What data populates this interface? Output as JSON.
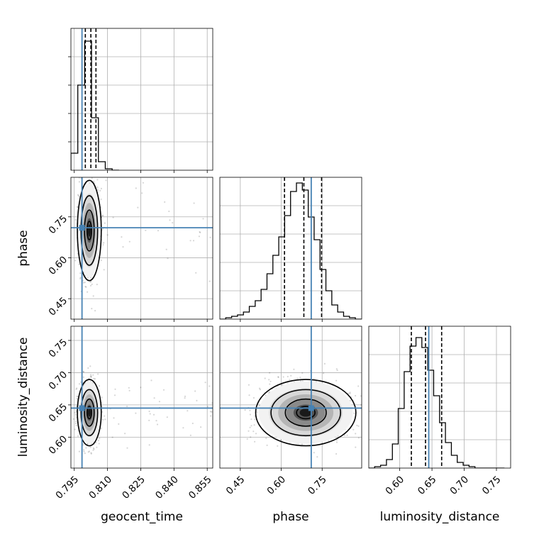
{
  "chart_data": {
    "type": "corner",
    "parameters": [
      {
        "key": "geocent_time",
        "label": "geocent_time",
        "range": [
          0.7935,
          0.8575
        ],
        "ticks": [
          "0.795",
          "0.810",
          "0.825",
          "0.840",
          "0.855"
        ],
        "truth": 0.7985,
        "quantiles": [
          0.8,
          0.8025,
          0.8048
        ]
      },
      {
        "key": "phase",
        "label": "phase",
        "range": [
          0.375,
          0.895
        ],
        "ticks": [
          "0.45",
          "0.60",
          "0.75"
        ],
        "truth": 0.71,
        "quantiles": [
          0.612,
          0.683,
          0.748
        ]
      },
      {
        "key": "luminosity_distance",
        "label": "luminosity_distance",
        "range": [
          0.552,
          0.772
        ],
        "ticks": [
          "0.60",
          "0.65",
          "0.70",
          "0.75"
        ],
        "truth": 0.645,
        "quantiles": [
          0.618,
          0.64,
          0.665
        ]
      }
    ],
    "histograms": {
      "geocent_time": {
        "bins": [
          0.7935,
          0.7966,
          0.7997,
          0.8028,
          0.8059,
          0.809,
          0.8121,
          0.8152
        ],
        "counts": [
          0.12,
          0.6,
          0.91,
          0.37,
          0.06,
          0.01,
          0.0
        ]
      },
      "phase": {
        "bins": [
          0.375,
          0.3966,
          0.4182,
          0.4398,
          0.4614,
          0.483,
          0.5046,
          0.5262,
          0.5478,
          0.5694,
          0.591,
          0.6126,
          0.6342,
          0.6558,
          0.6774,
          0.699,
          0.7206,
          0.7422,
          0.7638,
          0.7854,
          0.807,
          0.8286,
          0.8502,
          0.8718,
          0.8934
        ],
        "counts": [
          0.0,
          0.01,
          0.02,
          0.03,
          0.05,
          0.09,
          0.13,
          0.21,
          0.32,
          0.45,
          0.58,
          0.73,
          0.9,
          0.96,
          0.91,
          0.72,
          0.56,
          0.35,
          0.2,
          0.1,
          0.05,
          0.02,
          0.01,
          0.0
        ]
      },
      "luminosity_distance": {
        "bins": [
          0.552,
          0.5611,
          0.5703,
          0.5794,
          0.5886,
          0.5977,
          0.6069,
          0.616,
          0.6252,
          0.6343,
          0.6435,
          0.6526,
          0.6618,
          0.6709,
          0.6801,
          0.6892,
          0.6984,
          0.7075,
          0.7167,
          0.7258,
          0.735,
          0.7441,
          0.7533,
          0.7624
        ],
        "counts": [
          0.0,
          0.01,
          0.02,
          0.06,
          0.17,
          0.42,
          0.68,
          0.86,
          0.92,
          0.85,
          0.69,
          0.51,
          0.32,
          0.18,
          0.09,
          0.04,
          0.02,
          0.01,
          0.0,
          0.0,
          0.0,
          0.0,
          0.0
        ]
      }
    },
    "joint": {
      "phase|geocent_time": {
        "mean": [
          0.8018,
          0.7
        ],
        "std": [
          0.0022,
          0.075
        ],
        "corr": 0.0
      },
      "luminosity_distance|geocent_time": {
        "mean": [
          0.8018,
          0.638
        ],
        "std": [
          0.0022,
          0.021
        ],
        "corr": 0.0
      },
      "luminosity_distance|phase": {
        "mean": [
          0.69,
          0.638
        ],
        "std": [
          0.075,
          0.021
        ],
        "corr": 0.0
      }
    },
    "truth_color": "#4682b4",
    "grid": true,
    "quantile_line_style": "dashed black"
  }
}
